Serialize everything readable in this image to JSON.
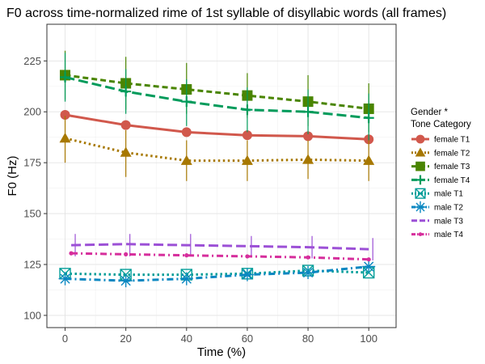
{
  "chart_data": {
    "type": "line",
    "title": "F0 across time-normalized rime of 1st syllable of disyllabic words (all frames)",
    "xlabel": "Time (%)",
    "ylabel": "F0 (Hz)",
    "xlim": [
      -6,
      109
    ],
    "ylim": [
      94,
      243
    ],
    "x_ticks": [
      "0",
      "20",
      "40",
      "60",
      "80",
      "100"
    ],
    "y_ticks": [
      "100",
      "125",
      "150",
      "175",
      "200",
      "225"
    ],
    "grid": true,
    "legend_position": "right",
    "legend_title": [
      "Gender *",
      "Tone Category"
    ],
    "series": [
      {
        "name": "female T1",
        "color": "#d1584c",
        "marker": "circle",
        "dash": "solid",
        "x": [
          0,
          20,
          40,
          60,
          80,
          100
        ],
        "y": [
          198.5,
          193.5,
          190,
          188.5,
          188,
          186.5
        ],
        "err_low": [],
        "err_high": []
      },
      {
        "name": "female T2",
        "color": "#a77800",
        "marker": "triangle",
        "dash": "dotted",
        "x": [
          0,
          20,
          40,
          60,
          80,
          100
        ],
        "y": [
          187,
          180,
          176,
          176,
          176.5,
          176
        ],
        "err_low": [
          175,
          168,
          166,
          166,
          167,
          166
        ],
        "err_high": [
          198,
          191,
          186,
          186,
          186,
          186
        ]
      },
      {
        "name": "female T3",
        "color": "#4a8500",
        "marker": "square",
        "dash": "dashed",
        "x": [
          0,
          20,
          40,
          60,
          80,
          100
        ],
        "y": [
          218,
          214,
          211,
          208,
          205,
          201.5
        ],
        "err_low": [
          206,
          201,
          199,
          197,
          193,
          190
        ],
        "err_high": [
          230,
          227,
          224,
          219,
          218,
          214
        ]
      },
      {
        "name": "female T4",
        "color": "#009b5b",
        "marker": "plus",
        "dash": "longdash",
        "x": [
          0,
          20,
          40,
          60,
          80,
          100
        ],
        "y": [
          217,
          210,
          205,
          201,
          200,
          197
        ],
        "err_low": [
          205,
          199,
          193,
          190,
          189,
          186
        ],
        "err_high": [
          229,
          221,
          216,
          212,
          211,
          209
        ]
      },
      {
        "name": "male T1",
        "color": "#009d98",
        "marker": "boxx",
        "dash": "dotted",
        "x": [
          0,
          20,
          40,
          60,
          80,
          100
        ],
        "y": [
          120.5,
          120,
          120,
          120.5,
          122,
          121
        ],
        "err_low": [],
        "err_high": []
      },
      {
        "name": "male T2",
        "color": "#0a87c1",
        "marker": "asterisk",
        "dash": "dashdot",
        "x": [
          0,
          20,
          40,
          60,
          80,
          100
        ],
        "y": [
          118,
          117,
          118,
          120,
          121,
          124
        ],
        "err_low": [],
        "err_high": []
      },
      {
        "name": "male T3",
        "color": "#9c50d6",
        "marker": "none",
        "dash": "longdash",
        "x": [
          2,
          20,
          40,
          60,
          80,
          100
        ],
        "y": [
          134.5,
          135,
          134.5,
          134,
          133.5,
          132.5
        ],
        "err_low": [
          129,
          129,
          129,
          129,
          128,
          127
        ],
        "err_high": [
          140,
          140,
          140,
          139,
          139,
          138
        ]
      },
      {
        "name": "male T4",
        "color": "#d62e9c",
        "marker": "dot",
        "dash": "dashdot",
        "x": [
          2,
          20,
          40,
          60,
          80,
          100
        ],
        "y": [
          130.5,
          130,
          129.5,
          129,
          128.5,
          127.5
        ],
        "err_low": [],
        "err_high": []
      }
    ]
  }
}
